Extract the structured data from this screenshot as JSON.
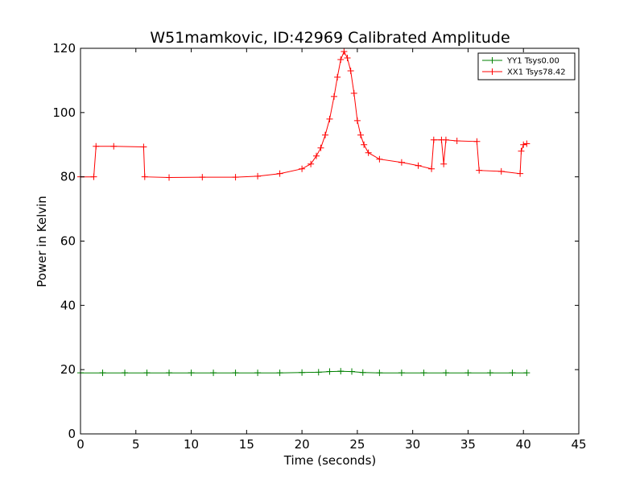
{
  "chart_data": {
    "type": "line",
    "title": "W51mamkovic, ID:42969 Calibrated Amplitude",
    "xlabel": "Time (seconds)",
    "ylabel": "Power in Kelvin",
    "xlim": [
      0,
      45
    ],
    "ylim": [
      0,
      120
    ],
    "xticks": [
      "0",
      "5",
      "10",
      "15",
      "20",
      "25",
      "30",
      "35",
      "40",
      "45"
    ],
    "yticks": [
      "0",
      "20",
      "40",
      "60",
      "80",
      "100",
      "120"
    ],
    "grid": false,
    "legend_position": "top-right",
    "series": [
      {
        "name": "YY1 Tsys0.00",
        "color": "#008000",
        "marker": "plus",
        "points": [
          [
            0.0,
            19.0
          ],
          [
            2.0,
            19.0
          ],
          [
            4.0,
            19.0
          ],
          [
            6.0,
            19.0
          ],
          [
            8.0,
            19.0
          ],
          [
            10.0,
            19.0
          ],
          [
            12.0,
            19.0
          ],
          [
            14.0,
            19.0
          ],
          [
            16.0,
            19.0
          ],
          [
            18.0,
            19.0
          ],
          [
            20.0,
            19.1
          ],
          [
            21.5,
            19.2
          ],
          [
            22.5,
            19.4
          ],
          [
            23.5,
            19.5
          ],
          [
            24.5,
            19.4
          ],
          [
            25.5,
            19.1
          ],
          [
            27.0,
            19.0
          ],
          [
            29.0,
            19.0
          ],
          [
            31.0,
            19.0
          ],
          [
            33.0,
            19.0
          ],
          [
            35.0,
            19.0
          ],
          [
            37.0,
            19.0
          ],
          [
            39.0,
            19.0
          ],
          [
            40.3,
            19.0
          ]
        ]
      },
      {
        "name": "XX1 Tsys78.42",
        "color": "#ff0000",
        "marker": "plus",
        "points": [
          [
            0.0,
            80.0
          ],
          [
            1.2,
            80.0
          ],
          [
            1.4,
            89.5
          ],
          [
            3.0,
            89.5
          ],
          [
            5.7,
            89.3
          ],
          [
            5.8,
            80.0
          ],
          [
            8.0,
            79.8
          ],
          [
            11.0,
            79.9
          ],
          [
            14.0,
            79.9
          ],
          [
            16.0,
            80.2
          ],
          [
            18.0,
            81.0
          ],
          [
            20.0,
            82.5
          ],
          [
            20.8,
            84.0
          ],
          [
            21.3,
            86.5
          ],
          [
            21.7,
            89.0
          ],
          [
            22.1,
            93.0
          ],
          [
            22.5,
            98.0
          ],
          [
            22.9,
            105.0
          ],
          [
            23.2,
            111.0
          ],
          [
            23.5,
            116.5
          ],
          [
            23.8,
            119.0
          ],
          [
            24.1,
            117.0
          ],
          [
            24.4,
            113.0
          ],
          [
            24.7,
            106.0
          ],
          [
            25.0,
            97.5
          ],
          [
            25.3,
            93.0
          ],
          [
            25.6,
            90.0
          ],
          [
            26.0,
            87.5
          ],
          [
            27.0,
            85.5
          ],
          [
            29.0,
            84.5
          ],
          [
            30.5,
            83.5
          ],
          [
            31.7,
            82.5
          ],
          [
            31.9,
            91.5
          ],
          [
            32.6,
            91.5
          ],
          [
            32.8,
            84.0
          ],
          [
            33.0,
            91.5
          ],
          [
            34.0,
            91.2
          ],
          [
            35.8,
            91.0
          ],
          [
            36.0,
            82.0
          ],
          [
            38.0,
            81.7
          ],
          [
            39.7,
            81.0
          ],
          [
            39.8,
            88.0
          ],
          [
            40.0,
            90.0
          ],
          [
            40.3,
            90.3
          ]
        ]
      }
    ]
  }
}
